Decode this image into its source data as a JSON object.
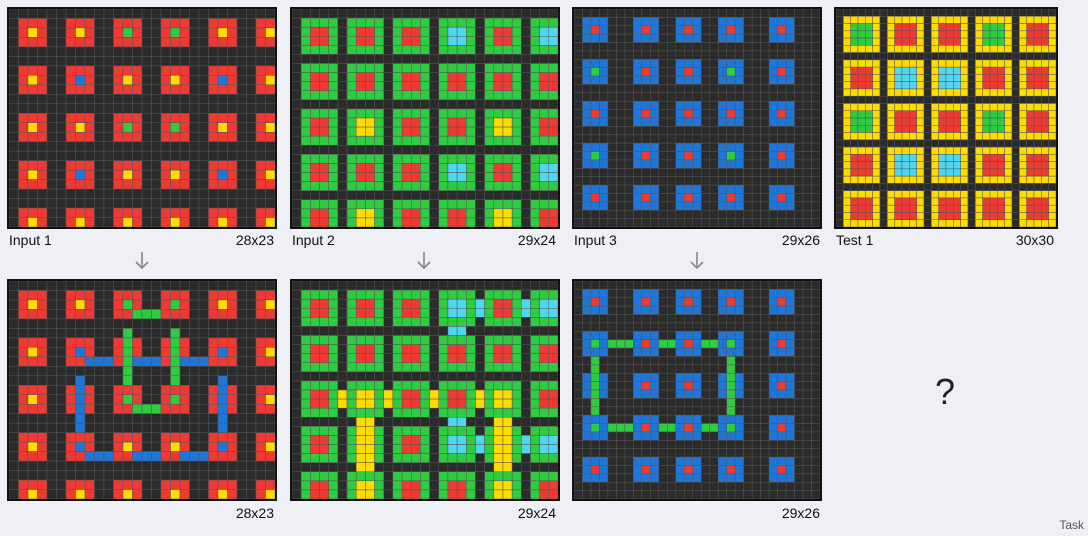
{
  "palette": {
    "0": "#2b2b2b",
    "1": "#1e76d8",
    "2": "#ee3a33",
    "3": "#2ecc40",
    "4": "#ffdc00",
    "8": "#4fd6f0"
  },
  "grid_line_color": "#555555",
  "panels": {
    "in1": {
      "label": "Input 1",
      "dims": "28x23"
    },
    "out1": {
      "label": "",
      "dims": "28x23"
    },
    "in2": {
      "label": "Input 2",
      "dims": "29x24"
    },
    "out2": {
      "label": "",
      "dims": "29x24"
    },
    "in3": {
      "label": "Input 3",
      "dims": "29x26"
    },
    "out3": {
      "label": "",
      "dims": "29x26"
    },
    "test": {
      "label": "Test 1",
      "dims": "30x30"
    }
  },
  "question": "?",
  "footer": "Task"
}
